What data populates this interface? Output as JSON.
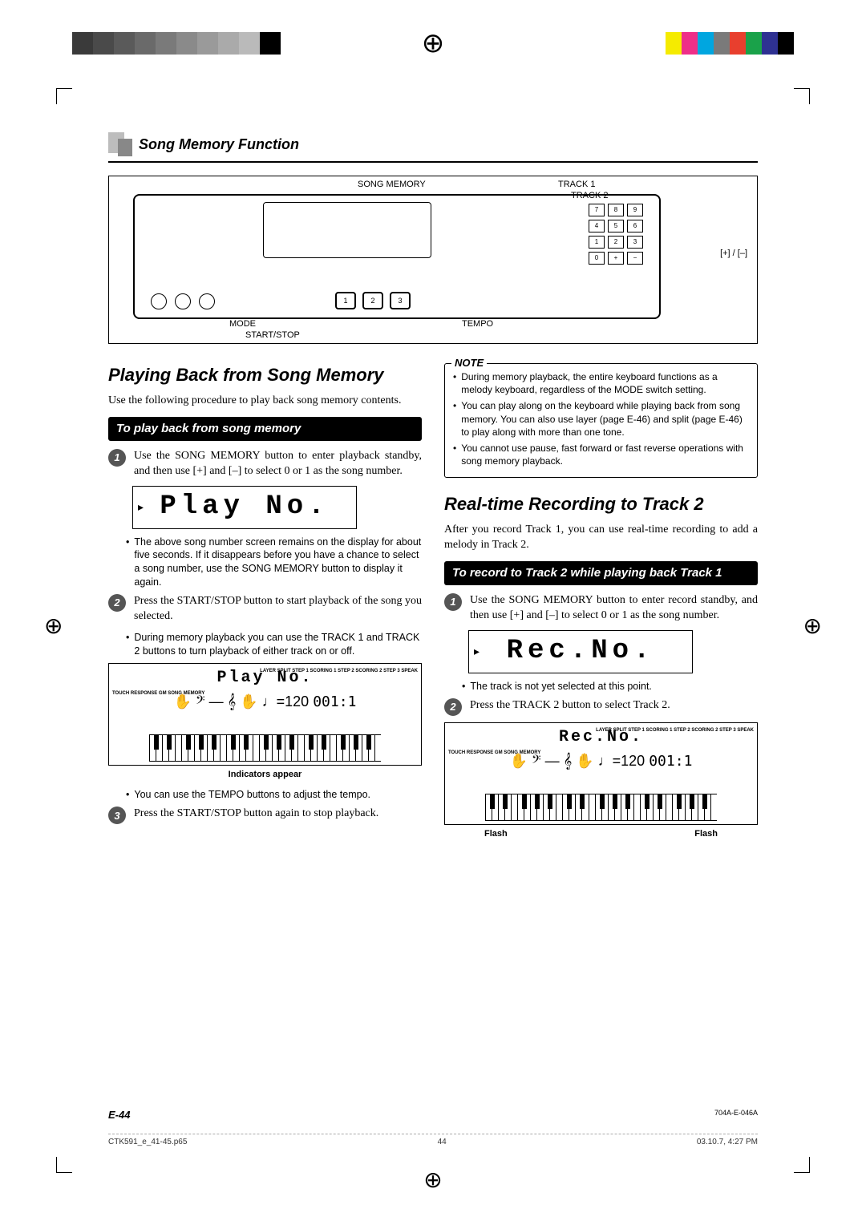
{
  "registration": {
    "grayscale_blocks": [
      "#3a3a3a",
      "#4a4a4a",
      "#5a5a5a",
      "#6a6a6a",
      "#7a7a7a",
      "#8a8a8a",
      "#9a9a9a",
      "#aaaaaa",
      "#bababa",
      "#000000"
    ],
    "color_blocks": [
      "#f5eb00",
      "#ee2f88",
      "#00a6e0",
      "#7a7a7a",
      "#e83f2e",
      "#1aa24a",
      "#2e3192",
      "#000000"
    ]
  },
  "header": {
    "title": "Song Memory Function"
  },
  "panel_labels": {
    "song_memory": "SONG MEMORY",
    "track1": "TRACK 1",
    "track2": "TRACK 2",
    "plus_minus": "[+] / [–]",
    "mode": "MODE",
    "start_stop": "START/STOP",
    "tempo": "TEMPO"
  },
  "left": {
    "title": "Playing Back from Song Memory",
    "intro": "Use the following procedure to play back song memory contents.",
    "subhead": "To play back from song memory",
    "step1": "Use the SONG MEMORY button to enter playback standby, and then use [+] and [–] to select 0 or 1 as the song number.",
    "lcd1": "Play No.",
    "bullet1": "The above song number screen remains on the display for about five seconds. If it disappears before you have a chance to select a song number, use the SONG MEMORY button to display it again.",
    "step2": "Press the START/STOP button to start playback of the song you selected.",
    "bullet2": "During memory playback you can use the TRACK 1 and TRACK 2 buttons to turn playback of either track on or off.",
    "lcd2_top": "Play No.",
    "lcd2_side_left": "TOUCH\nRESPONSE\nGM\nSONG MEMORY",
    "lcd2_side_right": "LAYER\nSPLIT\nSTEP 1\nSCORING 1\nSTEP 2\nSCORING 2\nSTEP 3\nSPEAK",
    "lcd2_tempo": "120",
    "lcd2_meas": "001:1",
    "lcd2_caption": "Indicators appear",
    "bullet3": "You can use the TEMPO buttons to adjust the tempo.",
    "step3": "Press the START/STOP button again to stop playback."
  },
  "right": {
    "note_label": "NOTE",
    "note1": "During memory playback, the entire keyboard functions as a melody keyboard, regardless of the MODE switch setting.",
    "note2": "You can play along on the keyboard while playing back from song memory. You can also use layer (page E-46) and split (page E-46) to play along with more than one tone.",
    "note3": "You cannot use pause, fast forward or fast reverse operations with song memory playback.",
    "title": "Real-time Recording to Track 2",
    "intro": "After you record Track 1, you can use real-time recording to add a melody in Track 2.",
    "subhead": "To record to Track 2 while playing back Track 1",
    "step1": "Use the SONG MEMORY button to enter record standby, and then use [+] and [–] to select 0 or 1 as the song number.",
    "lcd1": "Rec.No.",
    "bullet1": "The track is not yet selected at this point.",
    "step2": "Press the TRACK 2 button to select Track 2.",
    "lcd2_top": "Rec.No.",
    "lcd2_caption_l": "Flash",
    "lcd2_caption_r": "Flash"
  },
  "footer": {
    "page": "E-44",
    "doc_code": "704A-E-046A",
    "slug_file": "CTK591_e_41-45.p65",
    "slug_page": "44",
    "slug_date": "03.10.7, 4:27 PM"
  }
}
